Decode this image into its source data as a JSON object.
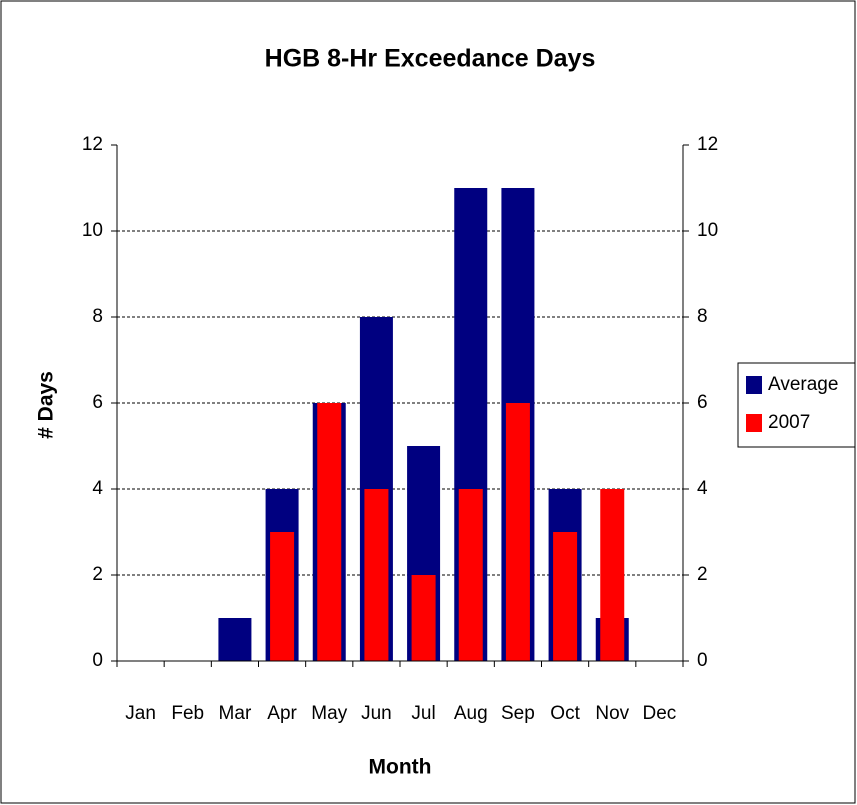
{
  "chart_data": {
    "type": "bar",
    "title": "HGB 8-Hr Exceedance Days",
    "x_label": "Month",
    "y_label": "# Days",
    "categories": [
      "Jan",
      "Feb",
      "Mar",
      "Apr",
      "May",
      "Jun",
      "Jul",
      "Aug",
      "Sep",
      "Oct",
      "Nov",
      "Dec"
    ],
    "series": [
      {
        "name": "Average",
        "color": "#000080",
        "values": [
          0,
          0,
          1,
          4,
          6,
          8,
          5,
          11,
          11,
          4,
          1,
          0
        ]
      },
      {
        "name": "2007",
        "color": "#ff0000",
        "axis": "y2",
        "values": [
          0,
          0,
          0,
          3,
          6,
          4,
          2,
          4,
          6,
          3,
          4,
          0
        ]
      }
    ],
    "ylim": [
      0,
      12
    ],
    "yticks": [
      0,
      2,
      4,
      6,
      8,
      10,
      12
    ],
    "y2lim": [
      0,
      12
    ],
    "y2ticks": [
      0,
      2,
      4,
      6,
      8,
      10,
      12
    ],
    "grid": true,
    "legend": "right"
  }
}
